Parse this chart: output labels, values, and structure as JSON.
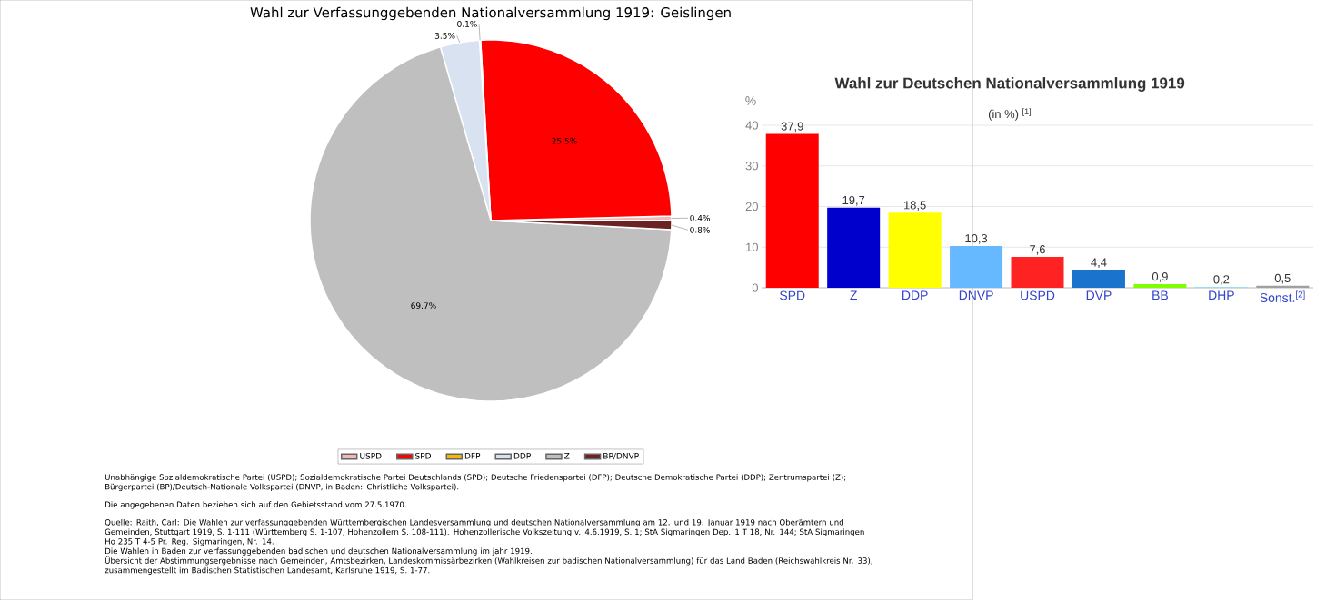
{
  "chart_data": [
    {
      "type": "pie",
      "title": "Wahl zur Verfassunggebenden Nationalversammlung 1919: Geislingen",
      "categories": [
        "USPD",
        "SPD",
        "DFP",
        "DDP",
        "Z",
        "BP/DNVP"
      ],
      "values": [
        0.4,
        25.5,
        0.1,
        3.5,
        69.7,
        0.8
      ],
      "colors": [
        "#f0b8b8",
        "#ff0000",
        "#f5b800",
        "#d9e2f0",
        "#bfbfbf",
        "#6b2222"
      ],
      "value_labels": [
        "0.4%",
        "25.5%",
        "0.1%",
        "3.5%",
        "69.7%",
        "0.8%"
      ],
      "legend": "bottom",
      "annotations": [
        "Unabhängige Sozialdemokratische Partei (USPD); Sozialdemokratische Partei Deutschlands (SPD); Deutsche Friedenspartei (DFP); Deutsche Demokratische Partei (DDP); Zentrumspartei (Z); Bürgerpartei (BP)/Deutsch-Nationale Volkspartei (DNVP, in Baden: Christliche Volkspartei).",
        "Die angegebenen Daten beziehen sich auf den Gebietsstand vom 27.5.1970.",
        "Quelle: Raith, Carl: Die Wahlen zur verfassunggebenden Württembergischen Landesversammlung und deutschen Nationalversammlung am 12. und 19. Januar 1919 nach Oberämtern und Gemeinden, Stuttgart 1919, S. 1-111 (Württemberg S. 1-107, Hohenzollern S. 108-111). Hohenzollerische Volkszeitung v. 4.6.1919, S. 1; StA Sigmaringen Dep. 1 T 18, Nr. 144; StA Sigmaringen Ho 235 T 4-5 Pr. Reg. Sigmaringen, Nr. 14.",
        "Die Wahlen in Baden zur verfassunggebenden badischen und deutschen Nationalversammlung im jahr 1919.",
        "Übersicht der Abstimmungsergebnisse nach Gemeinden, Amtsbezirken, Landeskommissärbezirken (Wahlkreisen zur badischen Nationalversammlung) für das Land Baden (Reichswahlkreis Nr. 33), zusammengestellt im Badischen Statistischen Landesamt, Karlsruhe 1919, S. 1-77."
      ]
    },
    {
      "type": "bar",
      "title": "Wahl zur Deutschen Nationalversammlung 1919",
      "subtitle": "(in %) $^{[1]}$",
      "ylabel": "%",
      "categories": [
        "SPD",
        "Z",
        "DDP",
        "DNVP",
        "USPD",
        "DVP",
        "BB",
        "DHP",
        "Sonst.$^{[2]}$"
      ],
      "values": [
        37.9,
        19.7,
        18.5,
        10.3,
        7.6,
        4.4,
        0.9,
        0.2,
        0.5
      ],
      "colors": [
        "#ff0000",
        "#0000cc",
        "#ffff00",
        "#66b8ff",
        "#ff2222",
        "#1a73cc",
        "#80ff00",
        "#99ddee",
        "#a0a0a0"
      ],
      "value_labels": [
        "37,9",
        "19,7",
        "18,5",
        "10,3",
        "7,6",
        "4,4",
        "0,9",
        "0,2",
        "0,5"
      ],
      "ylim": [
        0,
        40
      ],
      "yticks": [
        0,
        10,
        20,
        30,
        40
      ],
      "grid": "y"
    }
  ]
}
